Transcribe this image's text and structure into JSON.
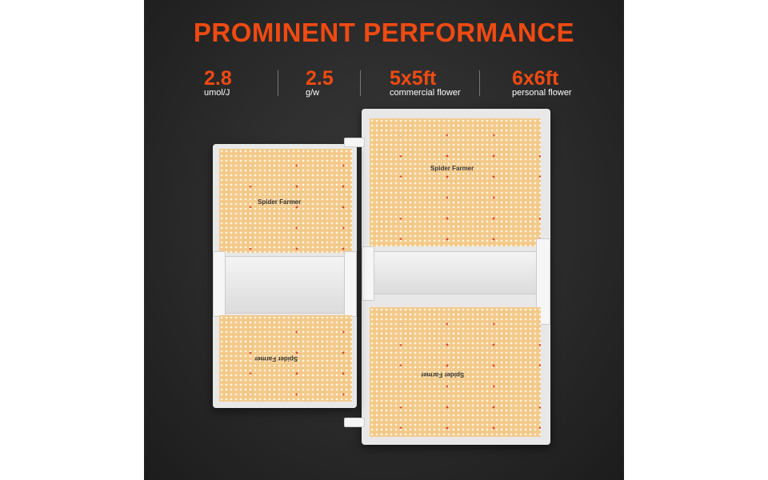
{
  "headline": "PROMINENT PERFORMANCE",
  "stats": [
    {
      "value": "2.8",
      "unit": "umol/J"
    },
    {
      "value": "2.5",
      "unit": "g/w"
    },
    {
      "value": "5x5ft",
      "unit": "commercial flower"
    },
    {
      "value": "6x6ft",
      "unit": "personal flower"
    }
  ],
  "brand_logo": "Spider Farmer",
  "colors": {
    "accent": "#f04a12",
    "board": "#f3c98a",
    "background": "#2a2a2a"
  }
}
